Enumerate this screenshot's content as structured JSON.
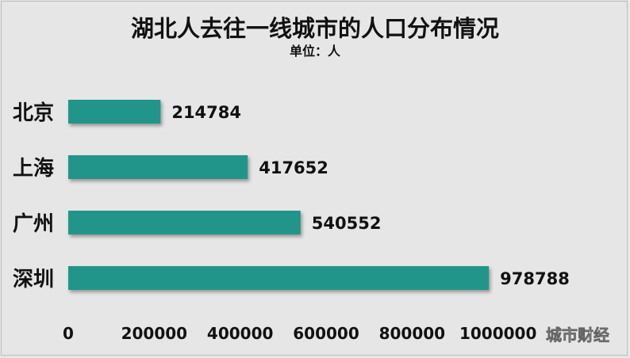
{
  "chart_data": {
    "type": "bar",
    "orientation": "horizontal",
    "title": "湖北人去往一线城市的人口分布情况",
    "subtitle": "单位：人",
    "categories": [
      "北京",
      "上海",
      "广州",
      "深圳"
    ],
    "values": [
      214784,
      417652,
      540552,
      978788
    ],
    "data_labels": [
      "214784",
      "417652",
      "540552",
      "978788"
    ],
    "x_ticks": [
      "0",
      "200000",
      "400000",
      "600000",
      "800000",
      "1000000"
    ],
    "xlim": [
      0,
      1200000
    ],
    "grid": false,
    "legend": "none",
    "colors": {
      "bar": "#23958a",
      "background": "#e6e6e6",
      "text": "#111111"
    }
  },
  "watermark": "城市财经"
}
